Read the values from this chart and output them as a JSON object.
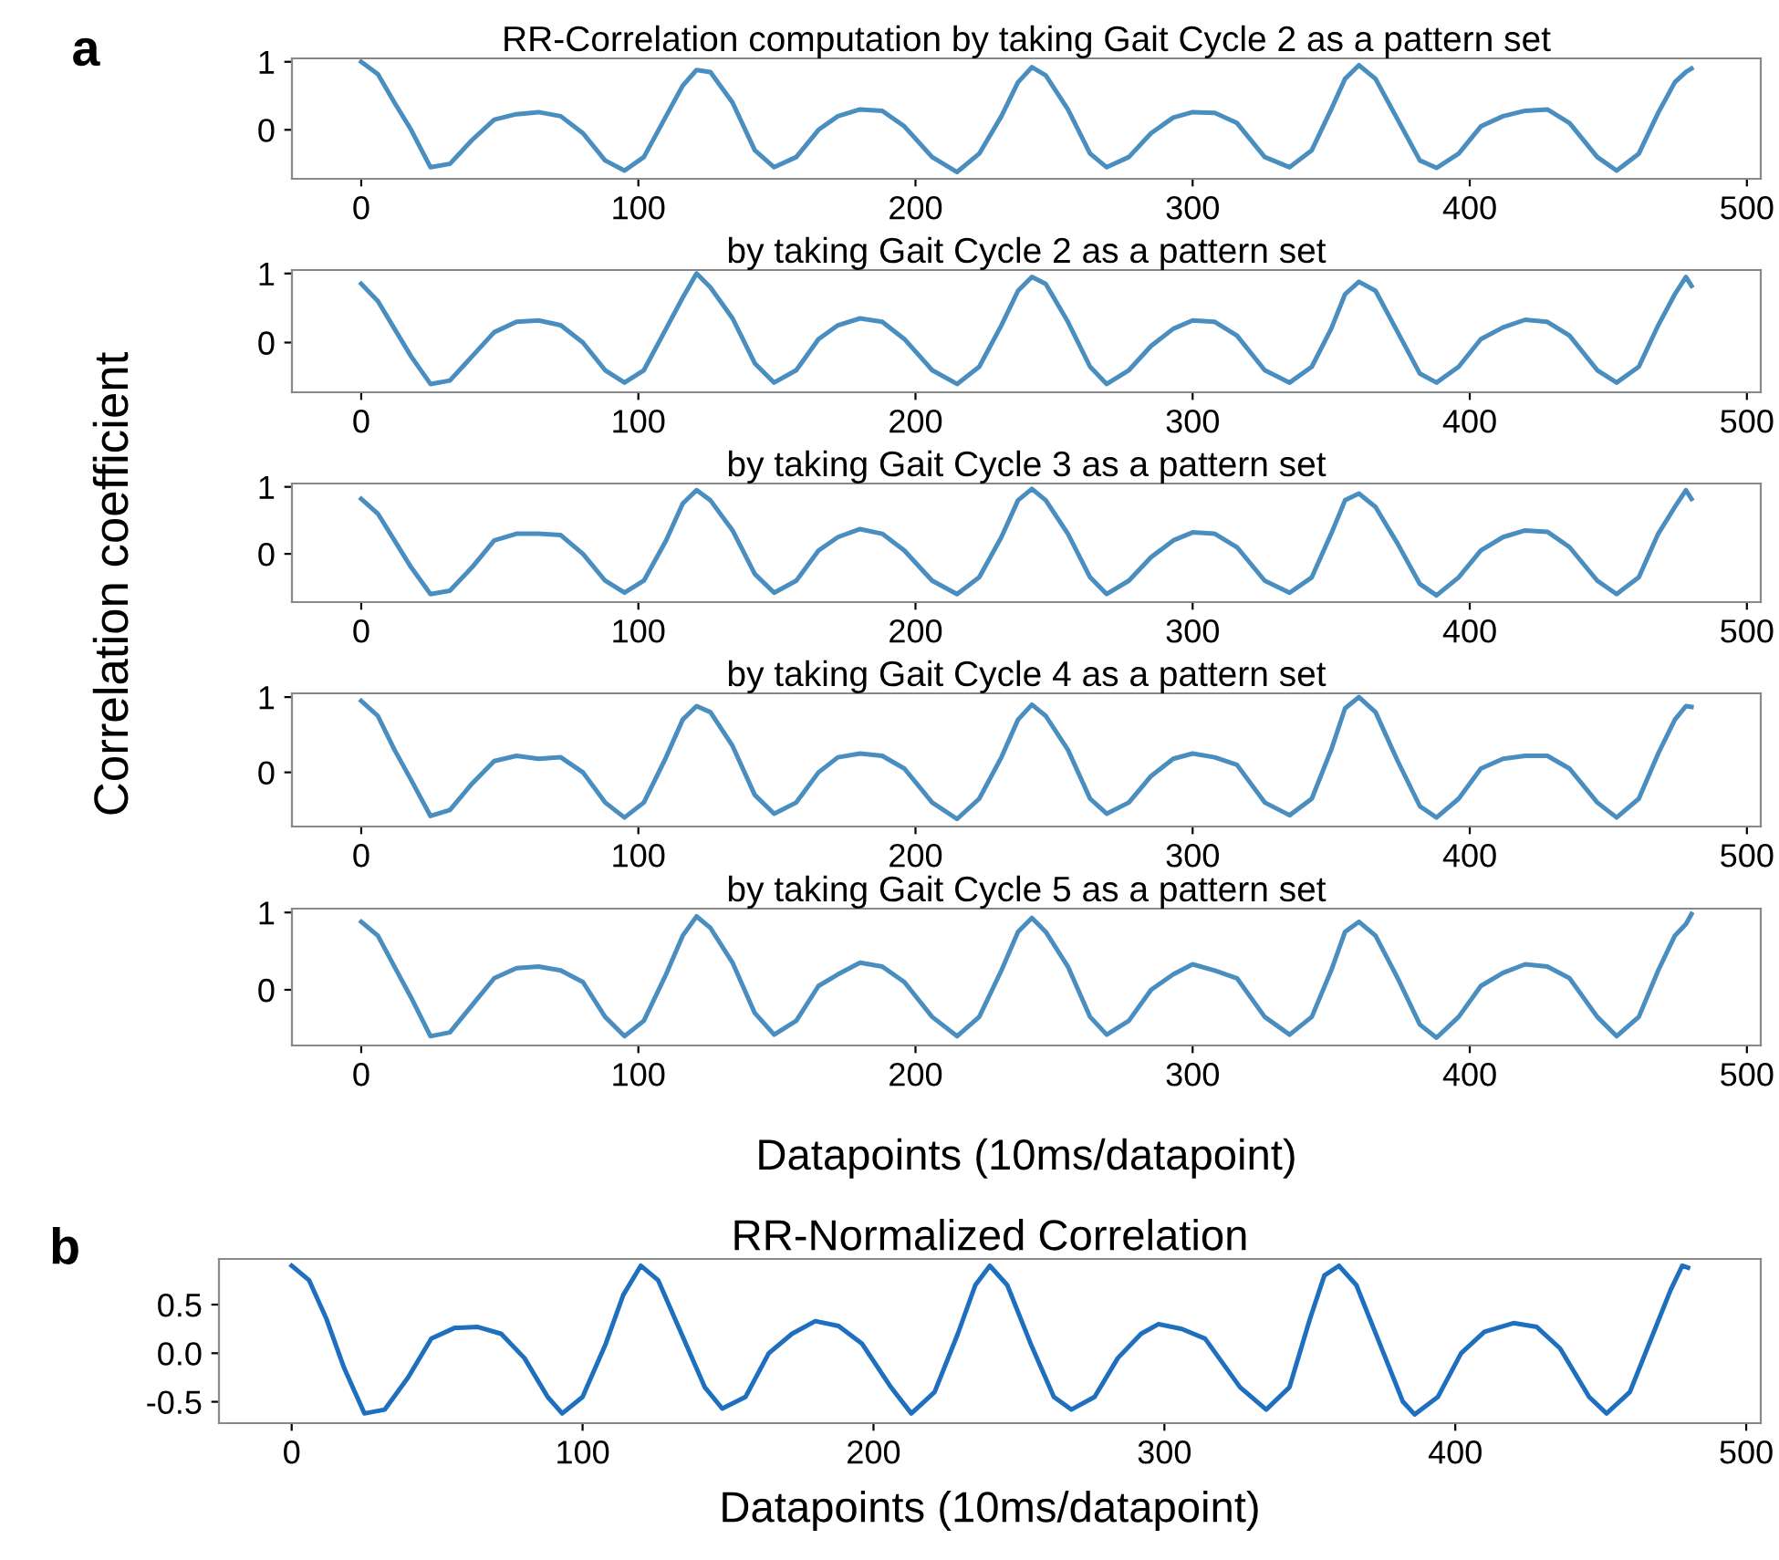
{
  "chart_data": [
    {
      "type": "line",
      "title": "RR-Correlation computation by taking Gait Cycle 2 as a pattern set",
      "annotations": [
        "a"
      ],
      "x": [
        0,
        6,
        12,
        18,
        25,
        32,
        40,
        48,
        56,
        64,
        72,
        80,
        88,
        95,
        102,
        110,
        116,
        121,
        126,
        134,
        142,
        149,
        157,
        165,
        172,
        180,
        188,
        196,
        206,
        215,
        223,
        231,
        237,
        242,
        247,
        255,
        263,
        269,
        277,
        285,
        293,
        300,
        308,
        316,
        326,
        335,
        343,
        350,
        355,
        360,
        366,
        374,
        382,
        388,
        396,
        404,
        412,
        420,
        428,
        436,
        446,
        453,
        461,
        468,
        474,
        478,
        480
      ],
      "series": [
        {
          "color": "#4a8ec0",
          "values": [
            1.0,
            0.82,
            0.4,
            0.0,
            -0.55,
            -0.5,
            -0.15,
            0.15,
            0.23,
            0.26,
            0.2,
            -0.05,
            -0.45,
            -0.6,
            -0.4,
            0.2,
            0.65,
            0.88,
            0.85,
            0.4,
            -0.3,
            -0.55,
            -0.4,
            0.0,
            0.2,
            0.3,
            0.28,
            0.05,
            -0.4,
            -0.62,
            -0.35,
            0.2,
            0.7,
            0.92,
            0.8,
            0.3,
            -0.35,
            -0.55,
            -0.4,
            -0.05,
            0.18,
            0.26,
            0.25,
            0.1,
            -0.4,
            -0.55,
            -0.3,
            0.3,
            0.75,
            0.95,
            0.75,
            0.15,
            -0.45,
            -0.56,
            -0.35,
            0.05,
            0.2,
            0.28,
            0.3,
            0.1,
            -0.4,
            -0.6,
            -0.35,
            0.25,
            0.7,
            0.85,
            0.9
          ]
        }
      ],
      "xlim": [
        -25,
        505
      ],
      "xticks": [
        0,
        100,
        200,
        300,
        400,
        500
      ],
      "ylim": [
        -0.72,
        1.05
      ],
      "yticks": [
        0,
        1
      ]
    },
    {
      "type": "line",
      "title": "by taking Gait Cycle 2 as a pattern set",
      "x": [
        0,
        6,
        12,
        18,
        25,
        32,
        40,
        48,
        56,
        64,
        72,
        80,
        88,
        95,
        102,
        110,
        116,
        121,
        126,
        134,
        142,
        149,
        157,
        165,
        172,
        180,
        188,
        196,
        206,
        215,
        223,
        231,
        237,
        242,
        247,
        255,
        263,
        269,
        277,
        285,
        293,
        300,
        308,
        316,
        326,
        335,
        343,
        350,
        355,
        360,
        366,
        374,
        382,
        388,
        396,
        404,
        412,
        420,
        428,
        436,
        446,
        453,
        461,
        468,
        474,
        478,
        480
      ],
      "series": [
        {
          "color": "#4a8ec0",
          "values": [
            0.85,
            0.6,
            0.2,
            -0.2,
            -0.6,
            -0.55,
            -0.2,
            0.15,
            0.3,
            0.32,
            0.25,
            0.0,
            -0.4,
            -0.58,
            -0.4,
            0.2,
            0.65,
            1.0,
            0.8,
            0.35,
            -0.3,
            -0.58,
            -0.4,
            0.05,
            0.25,
            0.35,
            0.3,
            0.05,
            -0.4,
            -0.6,
            -0.35,
            0.25,
            0.75,
            0.95,
            0.85,
            0.3,
            -0.35,
            -0.6,
            -0.4,
            -0.05,
            0.2,
            0.32,
            0.3,
            0.1,
            -0.4,
            -0.58,
            -0.35,
            0.2,
            0.7,
            0.88,
            0.75,
            0.15,
            -0.45,
            -0.58,
            -0.35,
            0.05,
            0.22,
            0.33,
            0.3,
            0.1,
            -0.4,
            -0.58,
            -0.35,
            0.25,
            0.7,
            0.95,
            0.82
          ]
        }
      ],
      "xlim": [
        -25,
        505
      ],
      "xticks": [
        0,
        100,
        200,
        300,
        400,
        500
      ],
      "ylim": [
        -0.72,
        1.05
      ],
      "yticks": [
        0,
        1
      ]
    },
    {
      "type": "line",
      "title": "by taking Gait Cycle 3 as a pattern set",
      "ylabel": "Correlation coefficient",
      "x": [
        0,
        6,
        12,
        18,
        25,
        32,
        40,
        48,
        56,
        64,
        72,
        80,
        88,
        95,
        102,
        110,
        116,
        121,
        126,
        134,
        142,
        149,
        157,
        165,
        172,
        180,
        188,
        196,
        206,
        215,
        223,
        231,
        237,
        242,
        247,
        255,
        263,
        269,
        277,
        285,
        293,
        300,
        308,
        316,
        326,
        335,
        343,
        350,
        355,
        360,
        366,
        374,
        382,
        388,
        396,
        404,
        412,
        420,
        428,
        436,
        446,
        453,
        461,
        468,
        474,
        478,
        480
      ],
      "series": [
        {
          "color": "#4a8ec0",
          "values": [
            0.82,
            0.6,
            0.2,
            -0.2,
            -0.6,
            -0.55,
            -0.2,
            0.2,
            0.3,
            0.3,
            0.28,
            0.0,
            -0.4,
            -0.58,
            -0.4,
            0.2,
            0.75,
            0.95,
            0.8,
            0.35,
            -0.3,
            -0.58,
            -0.4,
            0.05,
            0.25,
            0.37,
            0.3,
            0.05,
            -0.4,
            -0.6,
            -0.35,
            0.25,
            0.8,
            0.97,
            0.8,
            0.3,
            -0.35,
            -0.6,
            -0.4,
            -0.05,
            0.2,
            0.32,
            0.3,
            0.1,
            -0.4,
            -0.58,
            -0.35,
            0.3,
            0.8,
            0.9,
            0.7,
            0.15,
            -0.45,
            -0.62,
            -0.35,
            0.05,
            0.25,
            0.35,
            0.33,
            0.1,
            -0.4,
            -0.6,
            -0.35,
            0.3,
            0.7,
            0.95,
            0.82
          ]
        }
      ],
      "xlim": [
        -25,
        505
      ],
      "xticks": [
        0,
        100,
        200,
        300,
        400,
        500
      ],
      "ylim": [
        -0.72,
        1.05
      ],
      "yticks": [
        0,
        1
      ]
    },
    {
      "type": "line",
      "title": "by taking Gait Cycle 4 as a pattern set",
      "x": [
        0,
        6,
        12,
        18,
        25,
        32,
        40,
        48,
        56,
        64,
        72,
        80,
        88,
        95,
        102,
        110,
        116,
        121,
        126,
        134,
        142,
        149,
        157,
        165,
        172,
        180,
        188,
        196,
        206,
        215,
        223,
        231,
        237,
        242,
        247,
        255,
        263,
        269,
        277,
        285,
        293,
        300,
        308,
        316,
        326,
        335,
        343,
        350,
        355,
        360,
        366,
        374,
        382,
        388,
        396,
        404,
        412,
        420,
        428,
        436,
        446,
        453,
        461,
        468,
        474,
        478,
        480
      ],
      "series": [
        {
          "color": "#4a8ec0",
          "values": [
            0.95,
            0.75,
            0.3,
            -0.1,
            -0.58,
            -0.5,
            -0.15,
            0.15,
            0.22,
            0.18,
            0.2,
            0.0,
            -0.4,
            -0.6,
            -0.4,
            0.2,
            0.7,
            0.88,
            0.8,
            0.35,
            -0.3,
            -0.55,
            -0.4,
            0.0,
            0.2,
            0.25,
            0.22,
            0.05,
            -0.4,
            -0.62,
            -0.35,
            0.2,
            0.7,
            0.9,
            0.75,
            0.3,
            -0.35,
            -0.55,
            -0.4,
            -0.05,
            0.18,
            0.25,
            0.2,
            0.1,
            -0.4,
            -0.57,
            -0.35,
            0.3,
            0.85,
            1.0,
            0.8,
            0.15,
            -0.45,
            -0.6,
            -0.35,
            0.05,
            0.18,
            0.22,
            0.22,
            0.05,
            -0.4,
            -0.6,
            -0.35,
            0.25,
            0.7,
            0.88,
            0.87
          ]
        }
      ],
      "xlim": [
        -25,
        505
      ],
      "xticks": [
        0,
        100,
        200,
        300,
        400,
        500
      ],
      "ylim": [
        -0.72,
        1.05
      ],
      "yticks": [
        0,
        1
      ]
    },
    {
      "type": "line",
      "title": "by taking Gait Cycle 5 as a pattern set",
      "xlabel": "Datapoints (10ms/datapoint)",
      "x": [
        0,
        6,
        12,
        18,
        25,
        32,
        40,
        48,
        56,
        64,
        72,
        80,
        88,
        95,
        102,
        110,
        116,
        121,
        126,
        134,
        142,
        149,
        157,
        165,
        172,
        180,
        188,
        196,
        206,
        215,
        223,
        231,
        237,
        242,
        247,
        255,
        263,
        269,
        277,
        285,
        293,
        300,
        308,
        316,
        326,
        335,
        343,
        350,
        355,
        360,
        366,
        374,
        382,
        388,
        396,
        404,
        412,
        420,
        428,
        436,
        446,
        453,
        461,
        468,
        474,
        478,
        480
      ],
      "series": [
        {
          "color": "#4a8ec0",
          "values": [
            0.88,
            0.7,
            0.3,
            -0.1,
            -0.6,
            -0.55,
            -0.2,
            0.15,
            0.28,
            0.3,
            0.25,
            0.1,
            -0.35,
            -0.6,
            -0.4,
            0.2,
            0.7,
            0.95,
            0.8,
            0.35,
            -0.3,
            -0.58,
            -0.4,
            0.05,
            0.2,
            0.35,
            0.3,
            0.1,
            -0.35,
            -0.6,
            -0.35,
            0.25,
            0.75,
            0.93,
            0.75,
            0.3,
            -0.35,
            -0.58,
            -0.4,
            0.0,
            0.2,
            0.33,
            0.25,
            0.15,
            -0.35,
            -0.58,
            -0.35,
            0.25,
            0.75,
            0.88,
            0.7,
            0.15,
            -0.45,
            -0.62,
            -0.35,
            0.05,
            0.22,
            0.33,
            0.3,
            0.15,
            -0.35,
            -0.6,
            -0.35,
            0.25,
            0.7,
            0.85,
            0.98
          ]
        }
      ],
      "xlim": [
        -25,
        505
      ],
      "xticks": [
        0,
        100,
        200,
        300,
        400,
        500
      ],
      "ylim": [
        -0.72,
        1.05
      ],
      "yticks": [
        0,
        1
      ]
    },
    {
      "type": "line",
      "title": "RR-Normalized Correlation",
      "xlabel": "Datapoints (10ms/datapoint)",
      "annotations": [
        "b"
      ],
      "x": [
        0,
        6,
        12,
        18,
        25,
        32,
        40,
        48,
        56,
        64,
        72,
        80,
        88,
        93,
        100,
        108,
        114,
        120,
        126,
        134,
        142,
        148,
        156,
        164,
        172,
        180,
        188,
        196,
        206,
        213,
        221,
        229,
        235,
        240,
        246,
        254,
        262,
        268,
        276,
        284,
        292,
        298,
        306,
        314,
        326,
        335,
        343,
        350,
        355,
        360,
        366,
        374,
        382,
        386,
        394,
        402,
        410,
        420,
        428,
        436,
        446,
        452,
        460,
        468,
        474,
        478,
        480
      ],
      "series": [
        {
          "color": "#1f6fbf",
          "values": [
            0.9,
            0.75,
            0.35,
            -0.15,
            -0.62,
            -0.58,
            -0.25,
            0.15,
            0.26,
            0.27,
            0.2,
            -0.05,
            -0.45,
            -0.62,
            -0.45,
            0.1,
            0.6,
            0.9,
            0.75,
            0.2,
            -0.35,
            -0.57,
            -0.45,
            0.0,
            0.2,
            0.33,
            0.28,
            0.1,
            -0.35,
            -0.62,
            -0.4,
            0.2,
            0.7,
            0.9,
            0.7,
            0.1,
            -0.45,
            -0.58,
            -0.45,
            -0.05,
            0.2,
            0.3,
            0.25,
            0.15,
            -0.35,
            -0.58,
            -0.35,
            0.35,
            0.8,
            0.9,
            0.7,
            0.1,
            -0.5,
            -0.63,
            -0.45,
            0.0,
            0.22,
            0.31,
            0.27,
            0.05,
            -0.45,
            -0.62,
            -0.4,
            0.2,
            0.65,
            0.9,
            0.88
          ]
        }
      ],
      "xlim": [
        -25,
        505
      ],
      "xticks": [
        0,
        100,
        200,
        300,
        400,
        500
      ],
      "ylim": [
        -0.72,
        0.97
      ],
      "yticks": [
        {
          "value": -0.5,
          "label": "-0.5"
        },
        {
          "value": 0.0,
          "label": "0.0"
        },
        {
          "value": 0.5,
          "label": "0.5"
        }
      ]
    }
  ]
}
